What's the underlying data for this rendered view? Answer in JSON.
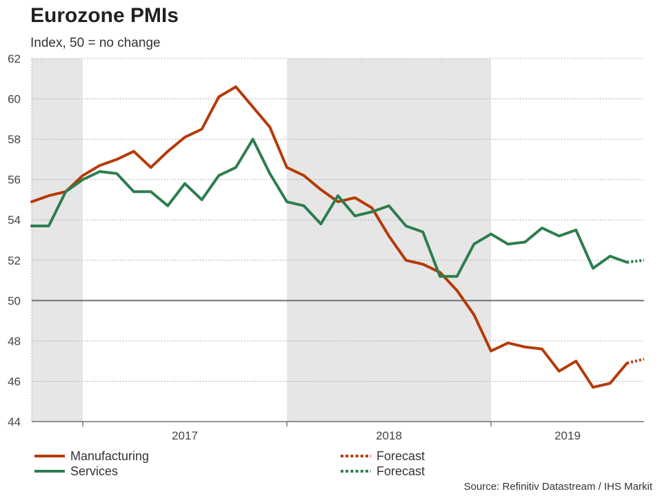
{
  "chart_data": {
    "type": "line",
    "title": "Eurozone PMIs",
    "subtitle": "Index, 50 = no change",
    "source": "Source: Refinitiv Datastream / IHS Markit",
    "x_start": "2016-10",
    "x_end": "2019-10",
    "ylim": [
      44,
      62
    ],
    "yticks": [
      44,
      46,
      48,
      50,
      52,
      54,
      56,
      58,
      60,
      62
    ],
    "year_labels": [
      "2017",
      "2018",
      "2019"
    ],
    "reference_line": 50,
    "grid": "horizontal-dotted",
    "shaded_years": [
      "2016",
      "2018"
    ],
    "series": [
      {
        "name": "Manufacturing",
        "color": "#b53a08",
        "dates": [
          "2016-10",
          "2016-11",
          "2016-12",
          "2017-01",
          "2017-02",
          "2017-03",
          "2017-04",
          "2017-05",
          "2017-06",
          "2017-07",
          "2017-08",
          "2017-09",
          "2017-10",
          "2017-11",
          "2017-12",
          "2018-01",
          "2018-02",
          "2018-03",
          "2018-04",
          "2018-05",
          "2018-06",
          "2018-07",
          "2018-08",
          "2018-09",
          "2018-10",
          "2018-11",
          "2018-12",
          "2019-01",
          "2019-02",
          "2019-03",
          "2019-04",
          "2019-05",
          "2019-06",
          "2019-07",
          "2019-08",
          "2019-09"
        ],
        "values": [
          54.9,
          55.2,
          55.4,
          56.2,
          56.7,
          57.0,
          57.4,
          56.6,
          57.4,
          58.1,
          58.5,
          60.1,
          60.6,
          59.6,
          58.6,
          56.6,
          56.2,
          55.5,
          54.9,
          55.1,
          54.6,
          53.2,
          52.0,
          51.8,
          51.4,
          50.5,
          49.3,
          47.5,
          47.9,
          47.7,
          47.6,
          46.5,
          47.0,
          45.7,
          45.9,
          46.9
        ],
        "forecast": {
          "dates": [
            "2019-09",
            "2019-10"
          ],
          "values": [
            46.9,
            47.1
          ]
        }
      },
      {
        "name": "Services",
        "color": "#2e7d4f",
        "dates": [
          "2016-10",
          "2016-11",
          "2016-12",
          "2017-01",
          "2017-02",
          "2017-03",
          "2017-04",
          "2017-05",
          "2017-06",
          "2017-07",
          "2017-08",
          "2017-09",
          "2017-10",
          "2017-11",
          "2017-12",
          "2018-01",
          "2018-02",
          "2018-03",
          "2018-04",
          "2018-05",
          "2018-06",
          "2018-07",
          "2018-08",
          "2018-09",
          "2018-10",
          "2018-11",
          "2018-12",
          "2019-01",
          "2019-02",
          "2019-03",
          "2019-04",
          "2019-05",
          "2019-06",
          "2019-07",
          "2019-08",
          "2019-09"
        ],
        "values": [
          53.7,
          53.7,
          55.4,
          56.0,
          56.4,
          56.3,
          55.4,
          55.4,
          54.7,
          55.8,
          55.0,
          56.2,
          56.6,
          58.0,
          56.3,
          54.9,
          54.7,
          53.8,
          55.2,
          54.2,
          54.4,
          54.7,
          53.7,
          53.4,
          51.2,
          51.2,
          52.8,
          53.3,
          52.8,
          52.9,
          53.6,
          53.2,
          53.5,
          51.6,
          52.2,
          51.9
        ],
        "forecast": {
          "dates": [
            "2019-09",
            "2019-10"
          ],
          "values": [
            51.9,
            52.0
          ]
        }
      }
    ],
    "legend": [
      {
        "label": "Manufacturing",
        "style": "solid",
        "color": "#b53a08"
      },
      {
        "label": "Forecast",
        "style": "dotted",
        "color": "#b53a08"
      },
      {
        "label": "Services",
        "style": "solid",
        "color": "#2e7d4f"
      },
      {
        "label": "Forecast",
        "style": "dotted",
        "color": "#2e7d4f"
      }
    ]
  }
}
